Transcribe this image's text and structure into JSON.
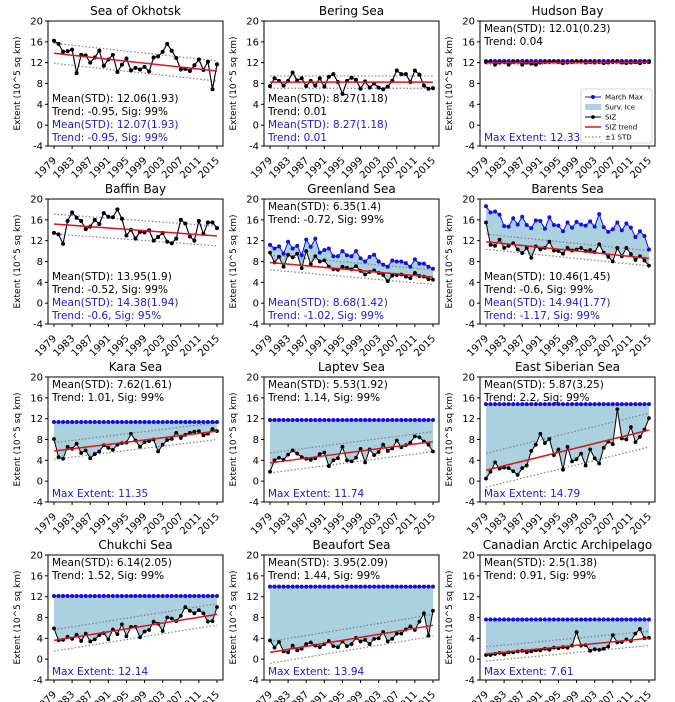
{
  "chart_data": {
    "type": "line",
    "years": [
      1979,
      1980,
      1981,
      1982,
      1983,
      1984,
      1985,
      1986,
      1987,
      1988,
      1989,
      1990,
      1991,
      1992,
      1993,
      1994,
      1995,
      1996,
      1997,
      1998,
      1999,
      2000,
      2001,
      2002,
      2003,
      2004,
      2005,
      2006,
      2007,
      2008,
      2009,
      2010,
      2011,
      2012,
      2013,
      2014,
      2015
    ],
    "x_ticks": [
      "1979",
      "1983",
      "1987",
      "1991",
      "1995",
      "1999",
      "2003",
      "2007",
      "2011",
      "2015"
    ],
    "y_ticks": [
      "-4",
      "0",
      "4",
      "8",
      "12",
      "16",
      "20"
    ],
    "ylim": [
      -4,
      20
    ],
    "ylabel": "Extent (10^5 sq km)",
    "legend": {
      "position": "right",
      "entries": [
        "March Max",
        "Surv. Ice",
        "SIZ",
        "SIZ trend",
        "±1 STD"
      ]
    },
    "colors": {
      "siz": "#000000",
      "max": "#1010e0",
      "trend": "#d81818",
      "std": "#808080",
      "fill": "#abd0df",
      "blue_text": "#1a1ad0"
    },
    "panels": [
      {
        "title": "Sea of Okhotsk",
        "mode": "overlap",
        "siz": [
          16.2,
          15.6,
          14.1,
          14.2,
          14.5,
          10.0,
          13.5,
          13.4,
          12.0,
          13.0,
          14.3,
          11.4,
          12.6,
          13.5,
          10.2,
          11.6,
          12.8,
          10.5,
          11.0,
          10.7,
          11.2,
          10.3,
          13.0,
          13.2,
          14.1,
          15.6,
          14.3,
          12.9,
          10.7,
          10.8,
          10.4,
          11.5,
          12.6,
          10.6,
          12.2,
          6.9,
          11.7
        ],
        "trend": [
          13.8,
          10.4
        ],
        "std": 1.93,
        "stats": [
          "Mean(STD): 12.06(1.93)",
          "Trend: -0.95, Sig: 99%"
        ],
        "stats_blue": [
          "Mean(STD): 12.07(1.93)",
          "Trend: -0.95, Sig: 99%"
        ]
      },
      {
        "title": "Bering Sea",
        "mode": "overlap",
        "siz": [
          7.5,
          9.0,
          8.5,
          7.6,
          8.5,
          10.1,
          8.6,
          9.0,
          7.5,
          8.5,
          7.6,
          9.0,
          7.4,
          9.3,
          9.8,
          8.3,
          6.0,
          8.5,
          9.1,
          8.7,
          7.0,
          8.4,
          7.2,
          8.0,
          7.2,
          6.9,
          7.4,
          8.5,
          10.5,
          9.8,
          9.8,
          8.3,
          10.5,
          9.7,
          7.6,
          7.0,
          7.1
        ],
        "trend": [
          8.27,
          8.27
        ],
        "std": 1.18,
        "stats": [
          "Mean(STD): 8.27(1.18)",
          "Trend: 0.01"
        ],
        "stats_blue": [
          "Mean(STD): 8.27(1.18)",
          "Trend: 0.01"
        ]
      },
      {
        "title": "Hudson Bay",
        "mode": "hudson",
        "siz": [
          12.1,
          12.2,
          11.6,
          12.0,
          12.1,
          11.6,
          12.1,
          12.2,
          11.6,
          12.0,
          11.8,
          11.6,
          12.0,
          12.1,
          12.1,
          12.2,
          12.1,
          11.9,
          12.0,
          12.1,
          12.2,
          12.2,
          12.0,
          12.1,
          12.0,
          12.1,
          11.9,
          12.0,
          12.1,
          12.2,
          12.0,
          11.9,
          12.0,
          12.1,
          11.9,
          12.1,
          12.1
        ],
        "max": 12.33,
        "trend": [
          11.95,
          12.1
        ],
        "std": 0.23,
        "stats": [
          "Mean(STD): 12.01(0.23)",
          "Trend: 0.04"
        ],
        "max_label": "Max Extent: 12.33"
      },
      {
        "title": "Baffin Bay",
        "mode": "overlap",
        "siz": [
          13.5,
          13.2,
          11.4,
          15.8,
          17.4,
          16.4,
          15.8,
          14.2,
          14.7,
          16.0,
          15.2,
          17.3,
          16.6,
          16.5,
          18.0,
          16.2,
          13.0,
          14.1,
          12.4,
          13.7,
          13.6,
          14.0,
          12.0,
          12.7,
          13.5,
          11.8,
          11.5,
          12.4,
          16.0,
          15.3,
          12.8,
          12.0,
          15.8,
          13.3,
          15.5,
          15.5,
          14.4
        ],
        "trend": [
          15.2,
          12.9
        ],
        "std": 1.9,
        "stats": [
          "Mean(STD): 13.95(1.9)",
          "Trend: -0.52, Sig: 99%"
        ],
        "stats_blue": [
          "Mean(STD): 14.38(1.94)",
          "Trend: -0.6, Sig: 95%"
        ]
      },
      {
        "title": "Greenland Sea",
        "mode": "surv",
        "siz": [
          9.7,
          7.8,
          8.9,
          7.0,
          9.3,
          8.8,
          9.5,
          6.7,
          10.0,
          7.5,
          9.0,
          8.0,
          8.2,
          7.0,
          6.5,
          6.4,
          7.0,
          6.8,
          6.5,
          7.1,
          6.2,
          5.5,
          6.0,
          6.3,
          5.8,
          5.4,
          4.2,
          5.3,
          5.4,
          5.5,
          5.1,
          4.8,
          5.8,
          5.2,
          5.1,
          4.6,
          4.5
        ],
        "maxs": [
          11.2,
          10.5,
          10.9,
          9.5,
          11.8,
          10.5,
          11.0,
          9.2,
          12.2,
          10.8,
          12.4,
          9.7,
          10.2,
          10.5,
          9.0,
          9.0,
          10.0,
          9.2,
          9.0,
          10.0,
          8.6,
          8.0,
          8.9,
          9.3,
          8.0,
          7.4,
          7.0,
          8.2,
          8.0,
          8.0,
          7.7,
          7.0,
          8.4,
          7.6,
          7.6,
          7.0,
          6.6
        ],
        "trend": [
          7.8,
          5.0
        ],
        "std": 1.4,
        "stats": [
          "Mean(STD): 6.35(1.4)",
          "Trend: -0.72, Sig: 99%"
        ],
        "stats_blue": [
          "Mean(STD): 8.68(1.42)",
          "Trend: -1.02, Sig: 99%"
        ]
      },
      {
        "title": "Barents Sea",
        "mode": "surv",
        "siz": [
          15.5,
          11.2,
          11.0,
          12.2,
          10.6,
          11.0,
          11.5,
          10.3,
          9.6,
          10.6,
          8.7,
          10.9,
          10.3,
          10.6,
          11.8,
          10.1,
          10.0,
          9.5,
          10.6,
          10.1,
          10.3,
          10.6,
          10.0,
          10.2,
          9.8,
          11.3,
          9.7,
          8.9,
          8.0,
          10.6,
          9.0,
          10.6,
          9.4,
          8.3,
          9.0,
          8.2,
          7.2
        ],
        "maxs": [
          18.6,
          17.4,
          17.6,
          17.0,
          14.8,
          14.7,
          16.3,
          15.1,
          16.6,
          15.0,
          14.4,
          15.9,
          15.8,
          14.3,
          16.5,
          15.0,
          14.9,
          13.8,
          15.5,
          14.5,
          15.6,
          15.1,
          14.9,
          15.7,
          14.7,
          17.1,
          14.6,
          13.7,
          14.2,
          15.5,
          14.0,
          15.3,
          14.5,
          12.7,
          13.8,
          12.9,
          10.3
        ],
        "trend": [
          11.8,
          8.6
        ],
        "std": 1.45,
        "stats": [
          "Mean(STD): 10.46(1.45)",
          "Trend: -0.6, Sig: 99%"
        ],
        "stats_blue": [
          "Mean(STD): 14.94(1.77)",
          "Trend: -1.17, Sig: 99%"
        ]
      },
      {
        "title": "Kara Sea",
        "mode": "max",
        "siz": [
          8.1,
          4.6,
          4.3,
          6.6,
          6.2,
          7.2,
          5.4,
          5.9,
          4.4,
          5.2,
          5.7,
          6.9,
          6.4,
          6.0,
          7.0,
          7.3,
          7.4,
          9.1,
          7.8,
          6.6,
          7.5,
          7.7,
          8.0,
          5.7,
          7.0,
          7.9,
          8.1,
          9.3,
          8.3,
          8.9,
          9.3,
          9.5,
          9.6,
          8.8,
          9.1,
          10.0,
          9.6
        ],
        "max": 11.35,
        "trend": [
          5.8,
          9.6
        ],
        "std": 1.61,
        "stats": [
          "Mean(STD): 7.62(1.61)",
          "Trend: 1.01, Sig: 99%"
        ],
        "max_label": "Max Extent: 11.35"
      },
      {
        "title": "Laptev Sea",
        "mode": "max",
        "siz": [
          1.8,
          4.0,
          4.5,
          4.1,
          5.1,
          5.9,
          5.3,
          4.6,
          4.3,
          4.1,
          4.4,
          5.2,
          5.5,
          2.9,
          4.0,
          4.4,
          6.6,
          4.0,
          3.8,
          4.5,
          6.2,
          3.6,
          6.1,
          5.0,
          5.6,
          7.0,
          5.8,
          6.3,
          7.8,
          6.5,
          6.9,
          7.4,
          8.6,
          8.4,
          7.6,
          7.0,
          5.7
        ],
        "max": 11.74,
        "trend": [
          3.5,
          7.6
        ],
        "std": 1.92,
        "stats": [
          "Mean(STD): 5.53(1.92)",
          "Trend: 1.14, Sig: 99%"
        ],
        "max_label": "Max Extent: 11.74"
      },
      {
        "title": "East Siberian Sea",
        "mode": "max",
        "siz": [
          0.5,
          1.8,
          3.6,
          2.4,
          2.6,
          2.5,
          1.9,
          1.2,
          2.5,
          3.0,
          5.8,
          7.0,
          9.1,
          7.3,
          8.1,
          5.0,
          6.1,
          2.2,
          6.6,
          3.8,
          4.2,
          5.3,
          3.0,
          6.1,
          4.4,
          3.4,
          6.4,
          7.6,
          7.1,
          13.8,
          8.2,
          8.0,
          10.4,
          7.5,
          8.5,
          9.9,
          12.1
        ],
        "max": 14.79,
        "trend": [
          2.1,
          9.8
        ],
        "std": 3.25,
        "stats": [
          "Mean(STD): 5.87(3.25)",
          "Trend: 2.2, Sig: 99%"
        ],
        "max_label": "Max Extent: 14.79"
      },
      {
        "title": "Chukchi Sea",
        "mode": "max",
        "siz": [
          5.9,
          3.6,
          3.7,
          4.3,
          3.9,
          4.7,
          3.5,
          4.9,
          3.4,
          3.8,
          4.6,
          5.0,
          3.8,
          5.7,
          4.8,
          6.7,
          4.4,
          6.2,
          6.2,
          4.2,
          5.3,
          5.6,
          7.2,
          6.8,
          5.4,
          8.0,
          7.8,
          7.3,
          8.3,
          10.0,
          9.3,
          8.8,
          9.4,
          8.8,
          7.2,
          7.3,
          10.0
        ],
        "max": 12.14,
        "trend": [
          3.6,
          8.6
        ],
        "std": 2.05,
        "stats": [
          "Mean(STD): 6.14(2.05)",
          "Trend: 1.52, Sig: 99%"
        ],
        "max_label": "Max Extent: 12.14"
      },
      {
        "title": "Beaufort Sea",
        "mode": "max",
        "siz": [
          3.6,
          2.2,
          3.3,
          1.5,
          1.3,
          2.6,
          1.7,
          2.0,
          2.9,
          3.2,
          2.6,
          2.3,
          2.9,
          3.5,
          2.5,
          2.3,
          3.4,
          2.5,
          2.9,
          4.1,
          3.4,
          3.7,
          2.9,
          3.9,
          4.0,
          5.2,
          3.4,
          3.9,
          4.9,
          4.9,
          5.7,
          6.3,
          5.6,
          7.2,
          8.8,
          4.5,
          9.3
        ],
        "max": 13.94,
        "trend": [
          1.3,
          6.5
        ],
        "std": 2.09,
        "stats": [
          "Mean(STD): 3.95(2.09)",
          "Trend: 1.44, Sig: 99%"
        ],
        "max_label": "Max Extent: 13.94"
      },
      {
        "title": "Canadian Arctic Archipelago",
        "mode": "max",
        "siz": [
          0.8,
          0.8,
          1.0,
          1.2,
          0.9,
          1.3,
          1.3,
          1.5,
          1.6,
          1.3,
          1.5,
          1.7,
          1.7,
          2.0,
          1.8,
          2.2,
          2.1,
          2.3,
          2.2,
          2.6,
          5.2,
          2.6,
          2.7,
          1.6,
          1.9,
          1.8,
          2.0,
          2.4,
          4.6,
          3.2,
          3.3,
          3.8,
          3.5,
          4.9,
          5.8,
          4.0,
          4.1
        ],
        "max": 7.61,
        "trend": [
          1.0,
          4.0
        ],
        "std": 1.38,
        "stats": [
          "Mean(STD): 2.5(1.38)",
          "Trend: 0.91, Sig: 99%"
        ],
        "max_label": "Max Extent: 7.61"
      }
    ]
  }
}
